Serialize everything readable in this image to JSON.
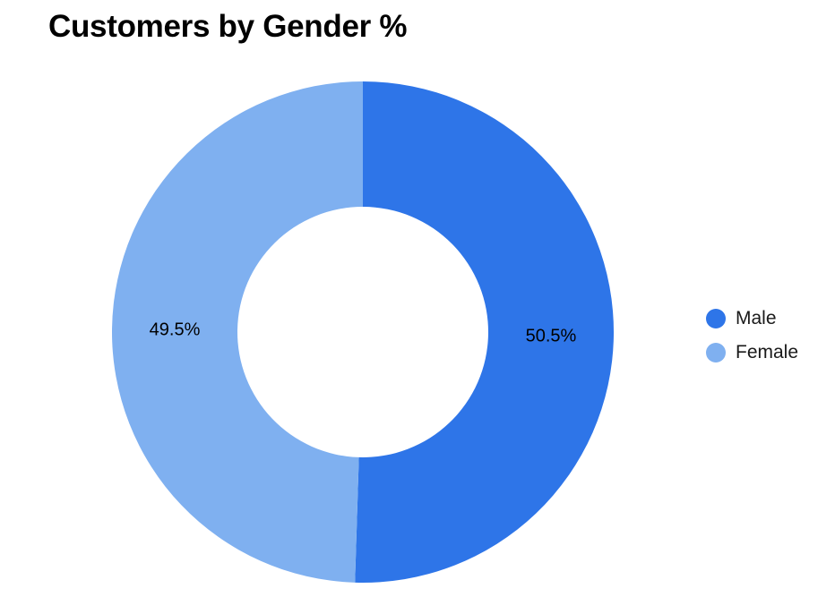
{
  "chart_data": {
    "type": "pie",
    "subtype": "donut",
    "title": "Customers by Gender %",
    "categories": [
      "Male",
      "Female"
    ],
    "values": [
      50.5,
      49.5
    ],
    "value_labels": [
      "50.5%",
      "49.5%"
    ],
    "colors": [
      "#2e75e8",
      "#7fb0f0"
    ],
    "legend_position": "right"
  }
}
